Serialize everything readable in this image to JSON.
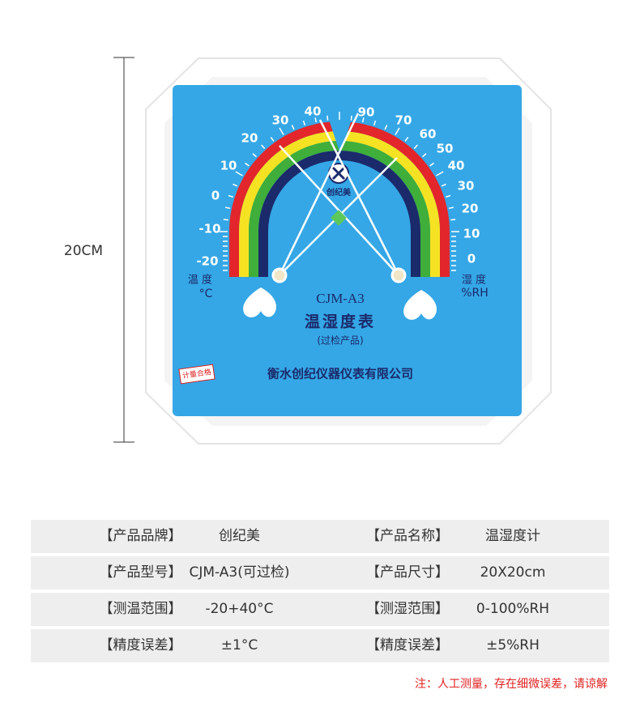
{
  "dimension": {
    "label": "20CM"
  },
  "gauge": {
    "temperature_scale": [
      "40",
      "30",
      "20",
      "10",
      "0",
      "-10",
      "-20"
    ],
    "humidity_scale": [
      "90",
      "70",
      "60",
      "50",
      "40",
      "30",
      "20",
      "10",
      "0"
    ],
    "temperature_label": "温 度",
    "temperature_unit": "°C",
    "humidity_label": "湿 度",
    "humidity_unit": "%RH",
    "brand": "创纪美",
    "model": "CJM-A3",
    "name": "温湿度表",
    "note": "(过检产品)",
    "maker": "衡水创纪仪器仪表有限公司",
    "sticker": "计量合格"
  },
  "table": {
    "rows": [
      [
        "【产品品牌】",
        "创纪美",
        "【产品名称】",
        "温湿度计"
      ],
      [
        "【产品型号】",
        "CJM-A3(可过检)",
        "【产品尺寸】",
        "20X20cm"
      ],
      [
        "【测温范围】",
        "-20+40°C",
        "【测湿范围】",
        "0-100%RH"
      ],
      [
        "【精度误差】",
        "±1°C",
        "【精度误差】",
        "±5%RH"
      ]
    ]
  },
  "footnote": "注：人工测量，存在细微误差，请谅解"
}
